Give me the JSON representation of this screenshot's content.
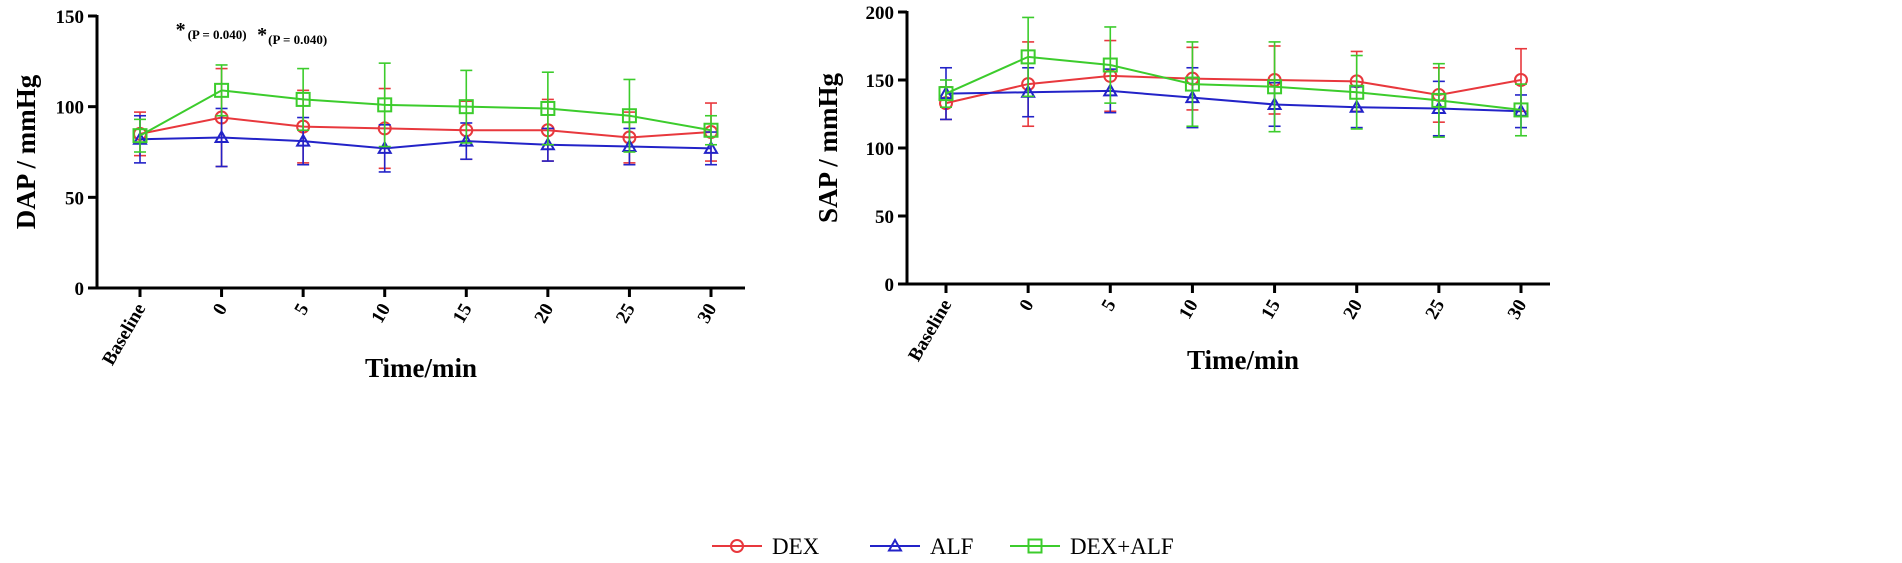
{
  "figure": {
    "legend": [
      {
        "name": "DEX",
        "color": "#e8383d",
        "marker": "circle"
      },
      {
        "name": "ALF",
        "color": "#2323c8",
        "marker": "triangle"
      },
      {
        "name": "DEX+ALF",
        "color": "#3ccc2c",
        "marker": "square"
      }
    ]
  },
  "chart_data": [
    {
      "type": "line",
      "title": "",
      "xlabel": "Time/min",
      "ylabel": "DAP / mmHg",
      "categories": [
        "Baseline",
        "0",
        "5",
        "10",
        "15",
        "20",
        "25",
        "30"
      ],
      "ylim": [
        0,
        150
      ],
      "yticks": [
        0,
        50,
        100,
        150
      ],
      "series": [
        {
          "name": "DEX",
          "color": "#e8383d",
          "marker": "circle",
          "values": [
            85,
            94,
            89,
            88,
            87,
            87,
            83,
            86
          ],
          "errors": [
            12,
            27,
            20,
            22,
            16,
            17,
            14,
            16
          ]
        },
        {
          "name": "ALF",
          "color": "#2323c8",
          "marker": "triangle",
          "values": [
            82,
            83,
            81,
            77,
            81,
            79,
            78,
            77
          ],
          "errors": [
            13,
            16,
            13,
            13,
            10,
            9,
            10,
            9
          ]
        },
        {
          "name": "DEX+ALF",
          "color": "#3ccc2c",
          "marker": "square",
          "values": [
            84,
            109,
            104,
            101,
            100,
            99,
            95,
            87
          ],
          "errors": [
            9,
            14,
            17,
            23,
            20,
            20,
            20,
            8
          ]
        }
      ],
      "annotations": [
        {
          "category": "0",
          "star": "*",
          "text": "(P = 0.040)"
        },
        {
          "category": "5",
          "star": "*",
          "text": "(P = 0.040)"
        }
      ]
    },
    {
      "type": "line",
      "title": "",
      "xlabel": "Time/min",
      "ylabel": "SAP / mmHg",
      "categories": [
        "Baseline",
        "0",
        "5",
        "10",
        "15",
        "20",
        "25",
        "30"
      ],
      "ylim": [
        0,
        200
      ],
      "yticks": [
        0,
        50,
        100,
        150,
        200
      ],
      "series": [
        {
          "name": "DEX",
          "color": "#e8383d",
          "marker": "circle",
          "values": [
            133,
            147,
            153,
            151,
            150,
            149,
            139,
            150
          ],
          "errors": [
            12,
            31,
            26,
            23,
            25,
            22,
            20,
            23
          ]
        },
        {
          "name": "ALF",
          "color": "#2323c8",
          "marker": "triangle",
          "values": [
            140,
            141,
            142,
            137,
            132,
            130,
            129,
            127
          ],
          "errors": [
            19,
            18,
            16,
            22,
            16,
            15,
            20,
            12
          ]
        },
        {
          "name": "DEX+ALF",
          "color": "#3ccc2c",
          "marker": "square",
          "values": [
            140,
            167,
            161,
            147,
            145,
            141,
            135,
            128
          ],
          "errors": [
            10,
            29,
            28,
            31,
            33,
            27,
            27,
            19
          ]
        }
      ],
      "annotations": []
    }
  ]
}
